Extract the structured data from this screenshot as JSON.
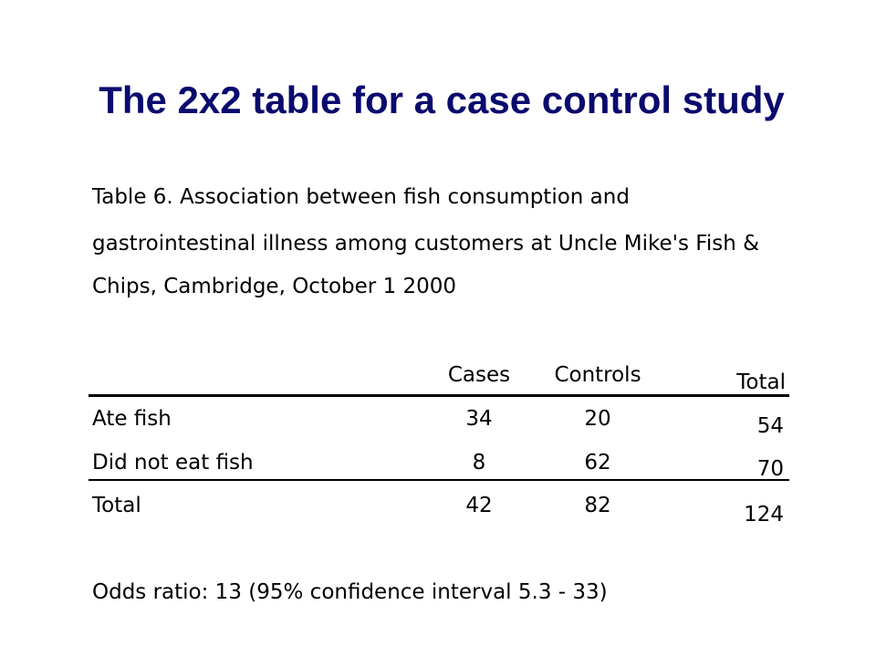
{
  "slide": {
    "title": "The 2x2 table for a case control study"
  },
  "table_caption": {
    "line1": "Table 6. Association between fish consumption and",
    "line2": "gastrointestinal illness among customers at Uncle Mike's Fish &",
    "line3": "Chips, Cambridge, October 1 2000"
  },
  "table": {
    "headers": {
      "cases": "Cases",
      "controls": "Controls",
      "total": "Total"
    },
    "rows": [
      {
        "label": "Ate fish",
        "cases": "34",
        "controls": "20",
        "total": "54"
      },
      {
        "label": "Did not eat fish",
        "cases": "8",
        "controls": "62",
        "total": "70"
      },
      {
        "label": "Total",
        "cases": "42",
        "controls": "82",
        "total": "124"
      }
    ]
  },
  "footnote": "Odds ratio: 13 (95% confidence interval 5.3 - 33)"
}
